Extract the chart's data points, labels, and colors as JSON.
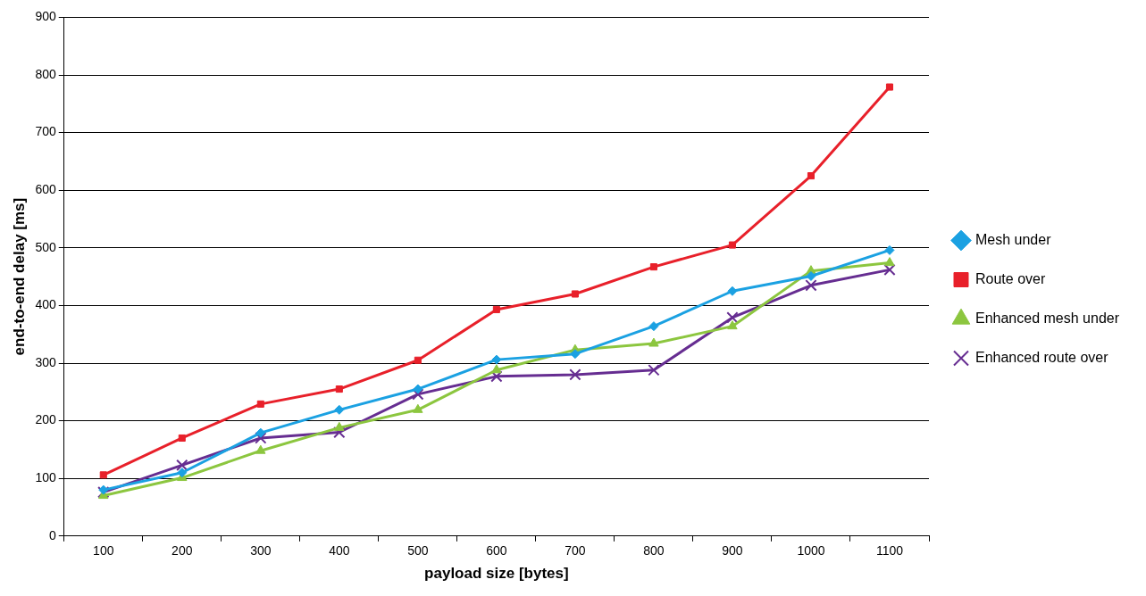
{
  "chart_data": {
    "type": "line",
    "xlabel": "payload size [bytes]",
    "ylabel": "end-to-end delay [ms]",
    "categories": [
      "100",
      "200",
      "300",
      "400",
      "500",
      "600",
      "700",
      "800",
      "900",
      "1000",
      "1100"
    ],
    "series": [
      {
        "name": "Mesh under",
        "color": "#1ba1e2",
        "marker": "diamond",
        "values": [
          80,
          110,
          179,
          219,
          255,
          306,
          316,
          364,
          425,
          451,
          496
        ]
      },
      {
        "name": "Route over",
        "color": "#e8202a",
        "marker": "square",
        "values": [
          106,
          170,
          229,
          255,
          305,
          393,
          420,
          467,
          505,
          625,
          779
        ]
      },
      {
        "name": "Enhanced mesh under",
        "color": "#8cc63f",
        "marker": "triangle",
        "values": [
          70,
          101,
          148,
          188,
          219,
          288,
          323,
          334,
          364,
          460,
          474
        ]
      },
      {
        "name": "Enhanced route over",
        "color": "#662d91",
        "marker": "cross",
        "values": [
          76,
          123,
          170,
          180,
          246,
          277,
          280,
          288,
          379,
          435,
          462
        ]
      }
    ],
    "ylim": [
      0,
      900
    ],
    "yticks": [
      0,
      100,
      200,
      300,
      400,
      500,
      600,
      700,
      800,
      900
    ],
    "grid": "y",
    "legend": "right",
    "line_style": "solid"
  }
}
